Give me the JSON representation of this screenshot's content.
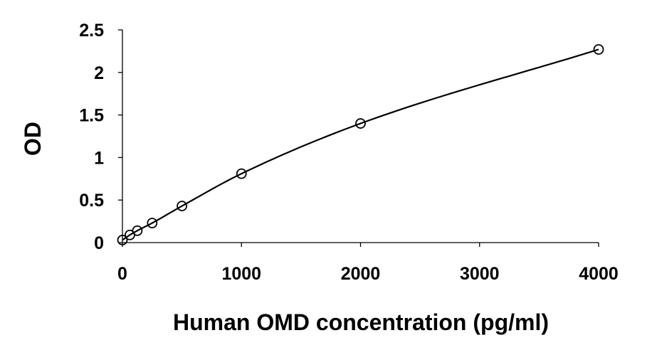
{
  "chart_data": {
    "type": "scatter",
    "title": "",
    "xlabel": "Human OMD concentration (pg/ml)",
    "ylabel": "OD",
    "xlim": [
      0,
      4000
    ],
    "ylim": [
      0,
      2.5
    ],
    "x_ticks": [
      "0",
      "1000",
      "2000",
      "3000",
      "4000"
    ],
    "y_ticks": [
      "0",
      "0.5",
      "1",
      "1.5",
      "2",
      "2.5"
    ],
    "grid": false,
    "legend": "none",
    "series": [
      {
        "x": [
          0,
          62.5,
          125,
          250,
          500,
          1000,
          2000,
          4000
        ],
        "y": [
          0.03,
          0.09,
          0.14,
          0.23,
          0.43,
          0.81,
          1.4,
          2.27
        ],
        "marker": "open-circle",
        "fit_curve": true
      }
    ]
  }
}
